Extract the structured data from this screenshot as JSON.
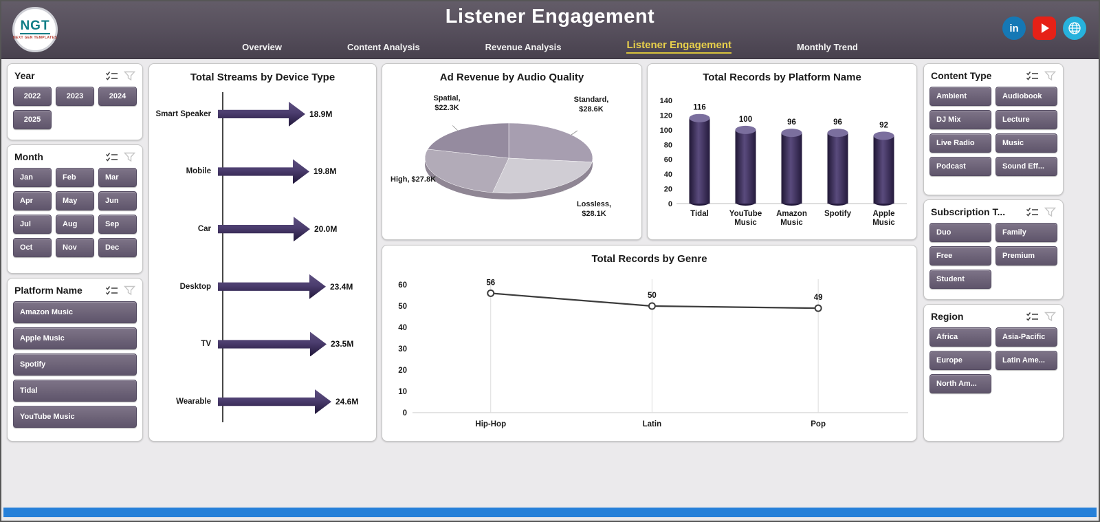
{
  "header": {
    "title": "Listener Engagement",
    "logo_text": "NGT",
    "logo_sub": "NEXT GEN TEMPLATES",
    "nav": [
      {
        "label": "Overview",
        "active": false
      },
      {
        "label": "Content Analysis",
        "active": false
      },
      {
        "label": "Revenue Analysis",
        "active": false
      },
      {
        "label": "Listener Engagement",
        "active": true
      },
      {
        "label": "Monthly Trend",
        "active": false
      }
    ],
    "social": {
      "linkedin_glyph": "in"
    }
  },
  "filters": {
    "year": {
      "title": "Year",
      "options": [
        "2022",
        "2023",
        "2024",
        "2025"
      ]
    },
    "month": {
      "title": "Month",
      "options": [
        "Jan",
        "Feb",
        "Mar",
        "Apr",
        "May",
        "Jun",
        "Jul",
        "Aug",
        "Sep",
        "Oct",
        "Nov",
        "Dec"
      ]
    },
    "platform": {
      "title": "Platform Name",
      "options": [
        "Amazon Music",
        "Apple Music",
        "Spotify",
        "Tidal",
        "YouTube Music"
      ]
    },
    "content_type": {
      "title": "Content Type",
      "options": [
        "Ambient",
        "Audiobook",
        "DJ Mix",
        "Lecture",
        "Live Radio",
        "Music",
        "Podcast",
        "Sound Eff..."
      ]
    },
    "subscription": {
      "title": "Subscription T...",
      "options": [
        "Duo",
        "Family",
        "Free",
        "Premium",
        "Student"
      ]
    },
    "region": {
      "title": "Region",
      "options": [
        "Africa",
        "Asia-Pacific",
        "Europe",
        "Latin Ame...",
        "North Am..."
      ]
    }
  },
  "chart_data": [
    {
      "type": "bar",
      "variant": "arrow-horizontal",
      "title": "Total Streams by Device Type",
      "categories": [
        "Smart Speaker",
        "Mobile",
        "Car",
        "Desktop",
        "TV",
        "Wearable"
      ],
      "values": [
        18.9,
        19.8,
        20.0,
        23.4,
        23.5,
        24.6
      ],
      "labels": [
        "18.9M",
        "19.8M",
        "20.0M",
        "23.4M",
        "23.5M",
        "24.6M"
      ],
      "unit": "M streams"
    },
    {
      "type": "pie",
      "variant": "3d",
      "title": "Ad Revenue by Audio Quality",
      "categories": [
        "Standard",
        "Lossless",
        "High",
        "Spatial"
      ],
      "values": [
        28.6,
        28.1,
        27.8,
        22.3
      ],
      "labels": [
        "Standard, $28.6K",
        "Lossless, $28.1K",
        "High, $27.8K",
        "Spatial, $22.3K"
      ],
      "unit": "$K"
    },
    {
      "type": "bar",
      "variant": "cylinder",
      "title": "Total Records by Platform Name",
      "categories": [
        "Tidal",
        "YouTube Music",
        "Amazon Music",
        "Spotify",
        "Apple Music"
      ],
      "values": [
        116,
        100,
        96,
        96,
        92
      ],
      "ylim": [
        0,
        140
      ],
      "yticks": [
        0,
        20,
        40,
        60,
        80,
        100,
        120,
        140
      ]
    },
    {
      "type": "line",
      "title": "Total Records by Genre",
      "categories": [
        "Hip-Hop",
        "Latin",
        "Pop"
      ],
      "values": [
        56,
        50,
        49
      ],
      "ylim": [
        0,
        60
      ],
      "yticks": [
        0,
        10,
        20,
        30,
        40,
        50,
        60
      ]
    }
  ],
  "colors": {
    "header_gradient_top": "#635c68",
    "header_gradient_bottom": "#48414e",
    "active_tab": "#e8d04b",
    "accent_purple": "#3b2d55",
    "filter_button": "#6b6176",
    "pie_colors": [
      "#a79eb0",
      "#d0cdd4",
      "#b2abb8",
      "#958b9f"
    ],
    "pie_rim": "#8f8694",
    "cylinder_top": "#7b6f9e",
    "line_color": "#3c3c3c",
    "footer_bar": "#2680d9",
    "linkedin_blue": "#1578b5",
    "youtube_red": "#e62117",
    "globe_teal": "#27b2dd",
    "logo_teal": "#0e7d86"
  }
}
